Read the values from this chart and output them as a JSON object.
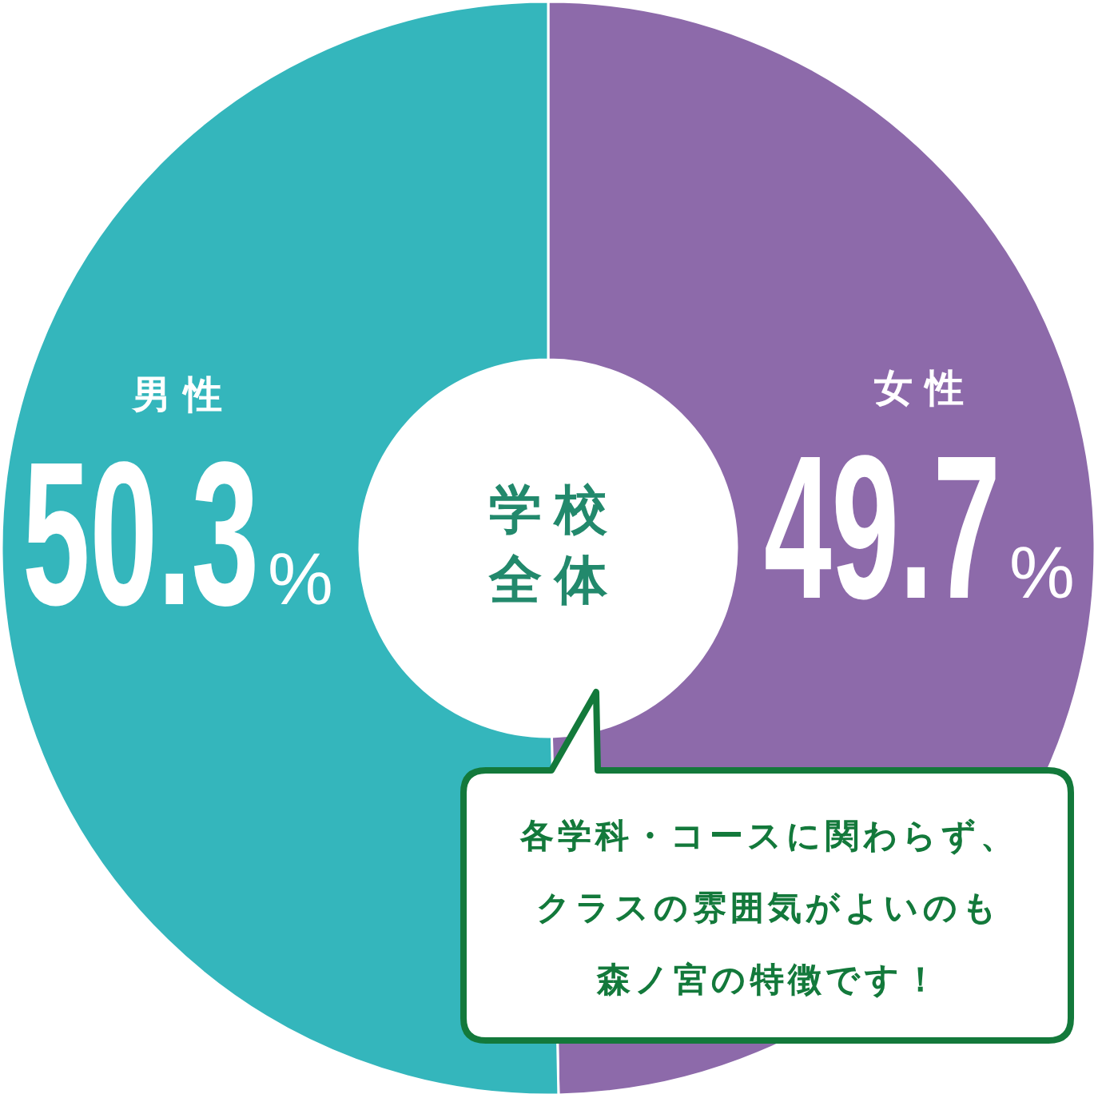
{
  "chart_data": {
    "type": "donut",
    "title": "学校全体",
    "categories": [
      "女性",
      "男性"
    ],
    "values": [
      49.7,
      50.3
    ],
    "colors": [
      "#8d6aaa",
      "#34b6bc"
    ],
    "value_labels": [
      "49.7%",
      "50.3%"
    ],
    "annotations": [
      "各学科・コースに関わらず、クラスの雰囲気がよいのも森ノ宮の特徴です！"
    ]
  }
}
